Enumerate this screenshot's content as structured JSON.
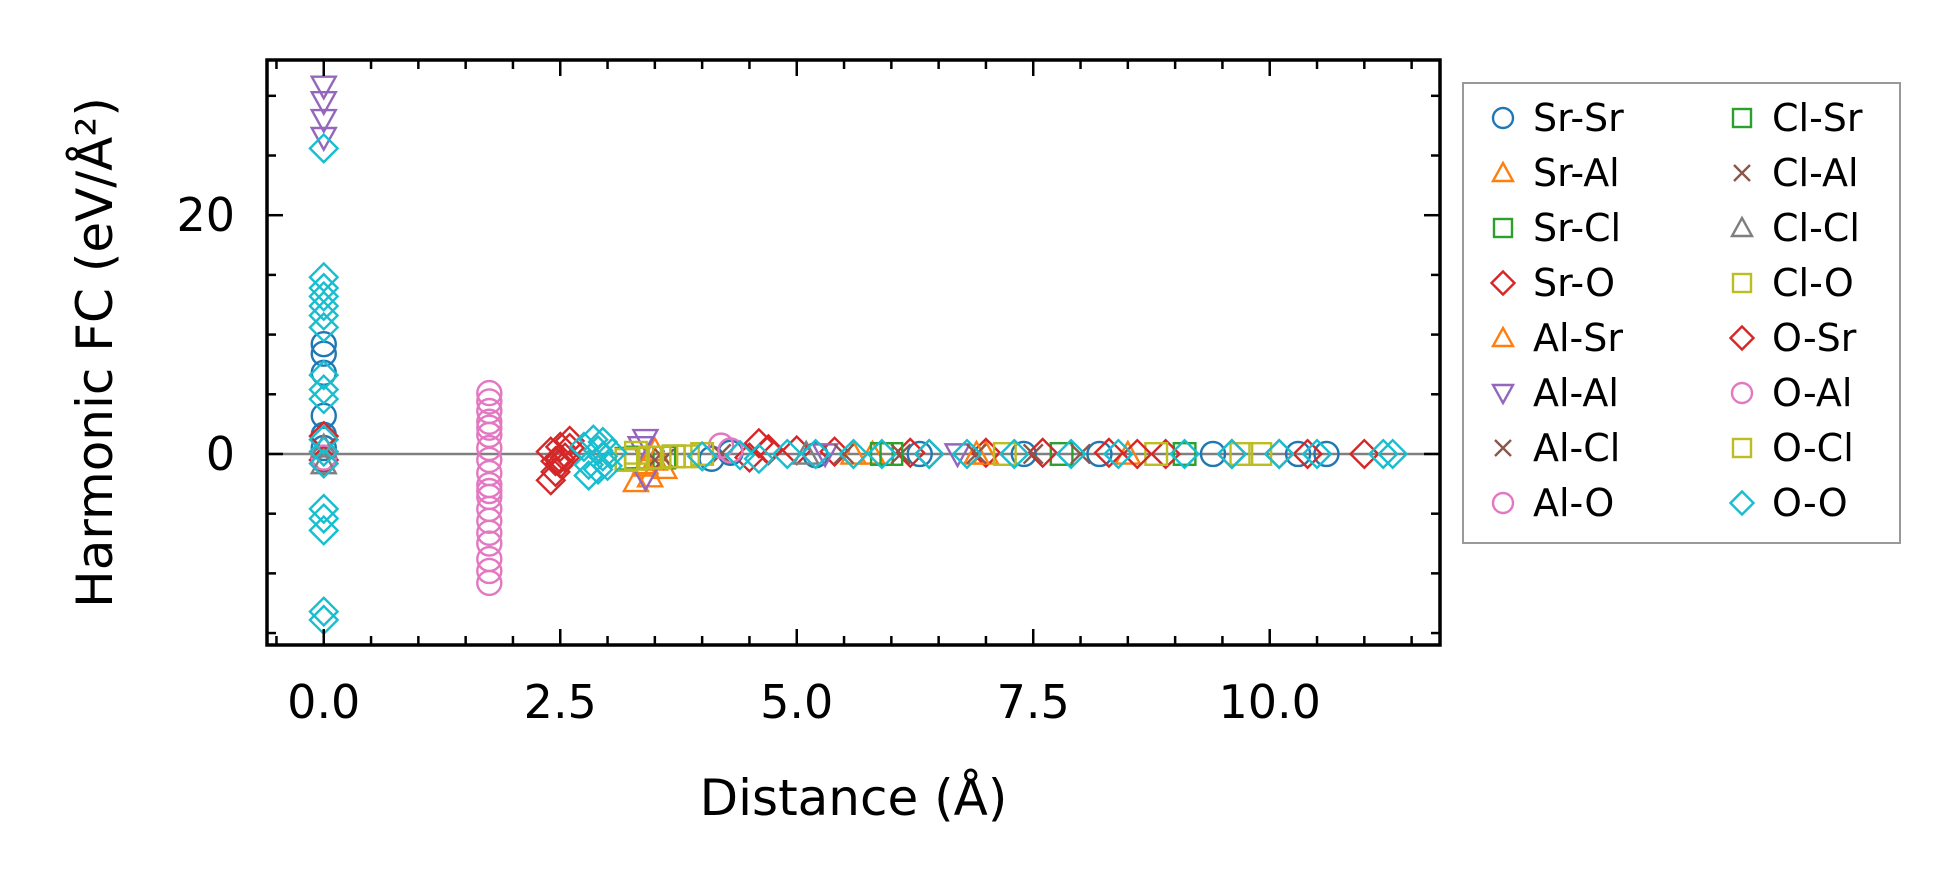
{
  "chart_data": {
    "type": "scatter",
    "title": "",
    "xlabel": "Distance (Å)",
    "ylabel": "Harmonic FC (eV/Å²)",
    "xlim": [
      -0.6,
      11.8
    ],
    "ylim": [
      -16,
      33
    ],
    "xticks": [
      0.0,
      2.5,
      5.0,
      7.5,
      10.0
    ],
    "xtick_labels": [
      "0.0",
      "2.5",
      "5.0",
      "7.5",
      "10.0"
    ],
    "yticks": [
      0,
      20
    ],
    "ytick_labels": [
      "0",
      "20"
    ],
    "zero_line": true,
    "legend_position": "outside-right",
    "series": [
      {
        "name": "Sr-Sr",
        "marker": "circle",
        "color": "#1f77b4",
        "points": [
          [
            0,
            9.2
          ],
          [
            0,
            8.4
          ],
          [
            0,
            6.8
          ],
          [
            0,
            3.2
          ],
          [
            0,
            1.6
          ],
          [
            0,
            0.5
          ],
          [
            0,
            -0.4
          ],
          [
            4.1,
            -0.4
          ],
          [
            4.3,
            0.1
          ],
          [
            5.2,
            -0.1
          ],
          [
            6.3,
            0.0
          ],
          [
            7.4,
            0.0
          ],
          [
            8.2,
            0.0
          ],
          [
            9.4,
            0.0
          ],
          [
            10.3,
            0.0
          ],
          [
            10.6,
            0.0
          ]
        ]
      },
      {
        "name": "Sr-Al",
        "marker": "triangle-up",
        "color": "#ff7f0e",
        "points": [
          [
            3.3,
            -2.3
          ],
          [
            3.45,
            -1.9
          ],
          [
            3.6,
            -1.2
          ],
          [
            3.4,
            -0.8
          ],
          [
            3.5,
            0.3
          ],
          [
            5.8,
            0.0
          ],
          [
            7.0,
            0.0
          ],
          [
            8.5,
            0.0
          ]
        ]
      },
      {
        "name": "Sr-Cl",
        "marker": "square",
        "color": "#2ca02c",
        "points": [
          [
            3.2,
            -0.4
          ],
          [
            3.6,
            -0.3
          ],
          [
            5.9,
            0.0
          ],
          [
            7.8,
            0.0
          ],
          [
            9.1,
            0.0
          ]
        ]
      },
      {
        "name": "Sr-O",
        "marker": "diamond",
        "color": "#d62728",
        "points": [
          [
            0,
            1.5
          ],
          [
            0,
            -0.5
          ],
          [
            2.4,
            -2.2
          ],
          [
            2.45,
            -1.5
          ],
          [
            2.5,
            -0.8
          ],
          [
            2.55,
            -0.3
          ],
          [
            2.4,
            0.2
          ],
          [
            2.5,
            0.6
          ],
          [
            2.6,
            1.1
          ],
          [
            2.45,
            -0.6
          ],
          [
            4.6,
            0.9
          ],
          [
            4.7,
            0.3
          ],
          [
            4.5,
            -0.3
          ],
          [
            5.0,
            0.3
          ],
          [
            5.4,
            0.2
          ],
          [
            6.2,
            0.1
          ],
          [
            7.0,
            0.1
          ],
          [
            7.6,
            0.1
          ],
          [
            8.3,
            0.1
          ],
          [
            8.9,
            0.0
          ],
          [
            9.6,
            0.0
          ],
          [
            10.1,
            0.0
          ],
          [
            10.4,
            0.0
          ],
          [
            11.0,
            0.0
          ]
        ]
      },
      {
        "name": "Al-Sr",
        "marker": "triangle-up",
        "color": "#ff7f0e",
        "points": [
          [
            3.4,
            -1.0
          ],
          [
            3.5,
            -0.5
          ],
          [
            5.6,
            0.0
          ],
          [
            6.9,
            0.0
          ]
        ]
      },
      {
        "name": "Al-Al",
        "marker": "triangle-down",
        "color": "#9467bd",
        "points": [
          [
            0,
            30.8
          ],
          [
            0,
            29.5
          ],
          [
            0,
            28.0
          ],
          [
            0,
            26.5
          ],
          [
            3.4,
            1.2
          ],
          [
            3.35,
            0.6
          ],
          [
            3.4,
            -2.0
          ],
          [
            5.3,
            0.0
          ],
          [
            6.7,
            0.0
          ]
        ]
      },
      {
        "name": "Al-Cl",
        "marker": "x",
        "color": "#8c564b",
        "points": [
          [
            3.5,
            -0.5
          ],
          [
            4.2,
            0.0
          ],
          [
            6.1,
            0.0
          ],
          [
            6.9,
            0.0
          ],
          [
            8.0,
            0.0
          ]
        ]
      },
      {
        "name": "Al-O",
        "marker": "circle",
        "color": "#e377c2",
        "points": [
          [
            0,
            -0.3
          ],
          [
            1.75,
            5.1
          ],
          [
            1.75,
            4.4
          ],
          [
            1.75,
            3.6
          ],
          [
            1.75,
            2.7
          ],
          [
            1.75,
            1.6
          ],
          [
            1.75,
            0.5
          ],
          [
            1.75,
            -0.5
          ],
          [
            1.75,
            -1.6
          ],
          [
            1.75,
            -2.6
          ],
          [
            1.75,
            -3.6
          ],
          [
            1.75,
            -4.6
          ],
          [
            1.75,
            -5.6
          ],
          [
            1.75,
            -6.6
          ],
          [
            1.75,
            -7.5
          ],
          [
            1.75,
            -8.8
          ],
          [
            1.75,
            -10.8
          ],
          [
            4.2,
            0.7
          ],
          [
            4.3,
            0.3
          ]
        ]
      },
      {
        "name": "Cl-Sr",
        "marker": "square",
        "color": "#2ca02c",
        "points": [
          [
            3.3,
            -0.3
          ],
          [
            3.7,
            -0.2
          ],
          [
            6.0,
            0.0
          ]
        ]
      },
      {
        "name": "Cl-Al",
        "marker": "x",
        "color": "#8c564b",
        "points": [
          [
            3.6,
            -0.4
          ],
          [
            5.5,
            0.0
          ],
          [
            7.5,
            0.0
          ]
        ]
      },
      {
        "name": "Cl-Cl",
        "marker": "triangle-up",
        "color": "#7f7f7f",
        "points": [
          [
            0,
            0.6
          ],
          [
            0,
            -0.8
          ],
          [
            5.1,
            0.0
          ]
        ]
      },
      {
        "name": "Cl-O",
        "marker": "square",
        "color": "#bcbd22",
        "points": [
          [
            3.2,
            -0.5
          ],
          [
            3.3,
            0.1
          ],
          [
            3.45,
            -0.3
          ],
          [
            3.7,
            -0.2
          ],
          [
            3.85,
            -0.2
          ],
          [
            4.0,
            0.0
          ],
          [
            7.2,
            0.0
          ],
          [
            8.8,
            0.0
          ],
          [
            9.7,
            0.0
          ]
        ]
      },
      {
        "name": "O-Sr",
        "marker": "diamond",
        "color": "#d62728",
        "points": [
          [
            2.5,
            -0.4
          ],
          [
            2.6,
            0.5
          ],
          [
            4.7,
            0.4
          ],
          [
            6.4,
            0.0
          ],
          [
            8.6,
            0.0
          ]
        ]
      },
      {
        "name": "O-Al",
        "marker": "circle",
        "color": "#e377c2",
        "points": [
          [
            1.75,
            2.2
          ],
          [
            1.75,
            -3.1
          ],
          [
            1.75,
            -9.8
          ]
        ]
      },
      {
        "name": "O-Cl",
        "marker": "square",
        "color": "#bcbd22",
        "points": [
          [
            3.3,
            -0.4
          ],
          [
            3.55,
            -0.3
          ],
          [
            9.9,
            0.0
          ]
        ]
      },
      {
        "name": "O-O",
        "marker": "diamond",
        "color": "#17becf",
        "points": [
          [
            0,
            25.6
          ],
          [
            0,
            14.8
          ],
          [
            0,
            13.9
          ],
          [
            0,
            13.2
          ],
          [
            0,
            12.4
          ],
          [
            0,
            11.6
          ],
          [
            0,
            10.6
          ],
          [
            0,
            6.6
          ],
          [
            0,
            5.4
          ],
          [
            0,
            4.6
          ],
          [
            0,
            1.2
          ],
          [
            0,
            0.2
          ],
          [
            0,
            -0.8
          ],
          [
            0,
            -4.6
          ],
          [
            0,
            -5.4
          ],
          [
            0,
            -6.4
          ],
          [
            0,
            -13.2
          ],
          [
            0,
            -13.9
          ],
          [
            2.8,
            -1.8
          ],
          [
            2.8,
            -0.9
          ],
          [
            2.85,
            1.2
          ],
          [
            2.9,
            -1.3
          ],
          [
            2.95,
            -0.2
          ],
          [
            2.75,
            0.6
          ],
          [
            2.9,
            0.3
          ],
          [
            3.0,
            -1.0
          ],
          [
            3.05,
            0.1
          ],
          [
            2.95,
            1.0
          ],
          [
            4.0,
            -0.2
          ],
          [
            4.4,
            -0.1
          ],
          [
            4.6,
            -0.4
          ],
          [
            4.9,
            0.0
          ],
          [
            5.2,
            0.0
          ],
          [
            5.6,
            0.0
          ],
          [
            5.9,
            0.0
          ],
          [
            6.4,
            0.0
          ],
          [
            6.8,
            0.0
          ],
          [
            7.3,
            0.0
          ],
          [
            7.9,
            0.0
          ],
          [
            8.4,
            0.0
          ],
          [
            9.1,
            0.0
          ],
          [
            9.6,
            0.0
          ],
          [
            10.1,
            0.0
          ],
          [
            10.5,
            0.0
          ],
          [
            11.2,
            0.0
          ],
          [
            11.3,
            0.0
          ]
        ]
      }
    ]
  }
}
